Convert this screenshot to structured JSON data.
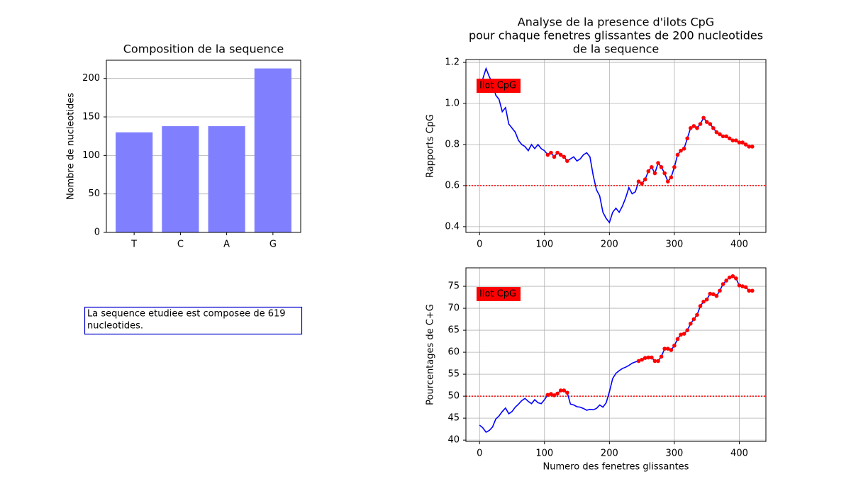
{
  "chart_data": [
    {
      "type": "bar",
      "title": "Composition de la sequence",
      "ylabel": "Nombre de nucleotides",
      "categories": [
        "T",
        "C",
        "A",
        "G"
      ],
      "values": [
        130,
        138,
        138,
        213
      ],
      "color": "#8080ff",
      "ylim": [
        0,
        223.65
      ],
      "yticks": [
        0,
        50,
        100,
        150,
        200
      ],
      "grid": "y"
    },
    {
      "type": "line",
      "title": [
        "Analyse de la presence d'ilots CpG",
        "pour chaque fenetres glissantes de 200 nucleotides",
        "de la sequence"
      ],
      "ylabel": "Rapports CpG",
      "x": [
        0,
        5,
        10,
        15,
        20,
        25,
        30,
        35,
        40,
        45,
        50,
        55,
        60,
        65,
        70,
        75,
        80,
        85,
        90,
        95,
        100,
        105,
        110,
        115,
        120,
        125,
        130,
        135,
        140,
        145,
        150,
        155,
        160,
        165,
        170,
        175,
        180,
        185,
        190,
        195,
        200,
        205,
        210,
        215,
        220,
        225,
        230,
        235,
        240,
        245,
        250,
        255,
        260,
        265,
        270,
        275,
        280,
        285,
        290,
        295,
        300,
        305,
        310,
        315,
        320,
        325,
        330,
        335,
        340,
        345,
        350,
        355,
        360,
        365,
        370,
        375,
        380,
        385,
        390,
        395,
        400,
        405,
        410,
        415,
        420
      ],
      "series": [
        {
          "color": "#0000ff",
          "marker": false,
          "values": [
            1.08,
            1.12,
            1.17,
            1.13,
            1.1,
            1.04,
            1.02,
            0.96,
            0.98,
            0.9,
            0.88,
            0.86,
            0.82,
            0.8,
            0.79,
            0.77,
            0.8,
            0.78,
            0.8,
            0.78,
            0.77,
            0.75,
            0.76,
            0.74,
            0.76,
            0.75,
            0.74,
            0.72,
            0.73,
            0.74,
            0.72,
            0.73,
            0.75,
            0.76,
            0.74,
            0.65,
            0.58,
            0.55,
            0.47,
            0.44,
            0.42,
            0.47,
            0.49,
            0.47,
            0.5,
            0.54,
            0.59,
            0.56,
            0.57,
            0.62,
            0.61,
            0.63,
            0.67,
            0.69,
            0.66,
            0.71,
            0.69,
            0.66,
            0.62,
            0.64,
            0.69,
            0.75,
            0.77,
            0.78,
            0.83,
            0.88,
            0.89,
            0.88,
            0.9,
            0.93,
            0.91,
            0.9,
            0.88,
            0.86,
            0.85,
            0.84,
            0.84,
            0.83,
            0.82,
            0.82,
            0.81,
            0.81,
            0.8,
            0.79,
            0.79
          ]
        },
        {
          "color": "#ff0000",
          "marker": true,
          "values": [
            null,
            null,
            null,
            null,
            null,
            null,
            null,
            null,
            null,
            null,
            null,
            null,
            null,
            null,
            null,
            null,
            null,
            null,
            null,
            null,
            null,
            0.75,
            0.76,
            0.74,
            0.76,
            0.75,
            0.74,
            0.72,
            null,
            null,
            null,
            null,
            null,
            null,
            null,
            null,
            null,
            null,
            null,
            null,
            null,
            null,
            null,
            null,
            null,
            null,
            null,
            null,
            null,
            0.62,
            0.61,
            0.63,
            0.67,
            0.69,
            0.66,
            0.71,
            0.69,
            0.66,
            0.62,
            0.64,
            0.69,
            0.75,
            0.77,
            0.78,
            0.83,
            0.88,
            0.89,
            0.88,
            0.9,
            0.93,
            0.91,
            0.9,
            0.88,
            0.86,
            0.85,
            0.84,
            0.84,
            0.83,
            0.82,
            0.82,
            0.81,
            0.81,
            0.8,
            0.79,
            0.79
          ]
        }
      ],
      "threshold": {
        "value": 0.6,
        "color": "#ff0000"
      },
      "annotation": {
        "text": "Ilot CpG",
        "color": "#0000ff",
        "background": "#ff0000"
      },
      "xlim": [
        -21,
        441
      ],
      "xticks": [
        0,
        100,
        200,
        300,
        400
      ],
      "ylim": [
        0.372,
        1.214
      ],
      "yticks": [
        0.4,
        0.6,
        0.8,
        {
          "value": 1,
          "label": "1.0"
        },
        1.2
      ],
      "grid": "both"
    },
    {
      "type": "line",
      "ylabel": "Pourcentages de C+G",
      "xlabel": "Numero des fenetres glissantes",
      "x": [
        0,
        5,
        10,
        15,
        20,
        25,
        30,
        35,
        40,
        45,
        50,
        55,
        60,
        65,
        70,
        75,
        80,
        85,
        90,
        95,
        100,
        105,
        110,
        115,
        120,
        125,
        130,
        135,
        140,
        145,
        150,
        155,
        160,
        165,
        170,
        175,
        180,
        185,
        190,
        195,
        200,
        205,
        210,
        215,
        220,
        225,
        230,
        235,
        240,
        245,
        250,
        255,
        260,
        265,
        270,
        275,
        280,
        285,
        290,
        295,
        300,
        305,
        310,
        315,
        320,
        325,
        330,
        335,
        340,
        345,
        350,
        355,
        360,
        365,
        370,
        375,
        380,
        385,
        390,
        395,
        400,
        405,
        410,
        415,
        420
      ],
      "series": [
        {
          "color": "#0000ff",
          "marker": false,
          "values": [
            43.4,
            42.8,
            41.8,
            42.2,
            43,
            44.8,
            45.5,
            46.5,
            47.3,
            46,
            46.5,
            47.5,
            48.2,
            49,
            49.5,
            48.8,
            48.3,
            49.2,
            48.5,
            48.3,
            49.2,
            50.3,
            50.5,
            50.2,
            50.6,
            51.3,
            51.3,
            50.8,
            48.2,
            48,
            47.6,
            47.5,
            47.2,
            46.8,
            47,
            46.9,
            47.2,
            48,
            47.5,
            48.5,
            51,
            54,
            55.2,
            55.8,
            56.3,
            56.6,
            57,
            57.5,
            57.8,
            58,
            58.3,
            58.7,
            58.8,
            58.8,
            58,
            58,
            59,
            60.8,
            60.8,
            60.5,
            61.5,
            63,
            64,
            64.2,
            65,
            66.5,
            67.5,
            68.5,
            70.5,
            71.5,
            72,
            73.3,
            73.2,
            72.8,
            74,
            75.5,
            76.3,
            77,
            77.3,
            76.8,
            75.2,
            75,
            74.8,
            74,
            74
          ]
        },
        {
          "color": "#ff0000",
          "marker": true,
          "values": [
            null,
            null,
            null,
            null,
            null,
            null,
            null,
            null,
            null,
            null,
            null,
            null,
            null,
            null,
            null,
            null,
            null,
            null,
            null,
            null,
            null,
            50.3,
            50.5,
            50.2,
            50.6,
            51.3,
            51.3,
            50.8,
            null,
            null,
            null,
            null,
            null,
            null,
            null,
            null,
            null,
            null,
            null,
            null,
            null,
            null,
            null,
            null,
            null,
            null,
            null,
            null,
            null,
            58,
            58.3,
            58.7,
            58.8,
            58.8,
            58,
            58,
            59,
            60.8,
            60.8,
            60.5,
            61.5,
            63,
            64,
            64.2,
            65,
            66.5,
            67.5,
            68.5,
            70.5,
            71.5,
            72,
            73.3,
            73.2,
            72.8,
            74,
            75.5,
            76.3,
            77,
            77.3,
            76.8,
            75.2,
            75,
            74.8,
            74,
            74
          ]
        }
      ],
      "threshold": {
        "value": 50,
        "color": "#ff0000"
      },
      "annotation": {
        "text": "Ilot CpG",
        "color": "#0000ff",
        "background": "#ff0000"
      },
      "xlim": [
        -21,
        441
      ],
      "xticks": [
        0,
        100,
        200,
        300,
        400
      ],
      "ylim": [
        39.7,
        79.2
      ],
      "yticks": [
        40,
        45,
        50,
        55,
        60,
        65,
        70,
        75
      ],
      "grid": "both"
    }
  ],
  "text_box": {
    "lines": [
      "La sequence etudiee est composee de 619",
      "nucleotides."
    ],
    "color": "#0000cd"
  }
}
